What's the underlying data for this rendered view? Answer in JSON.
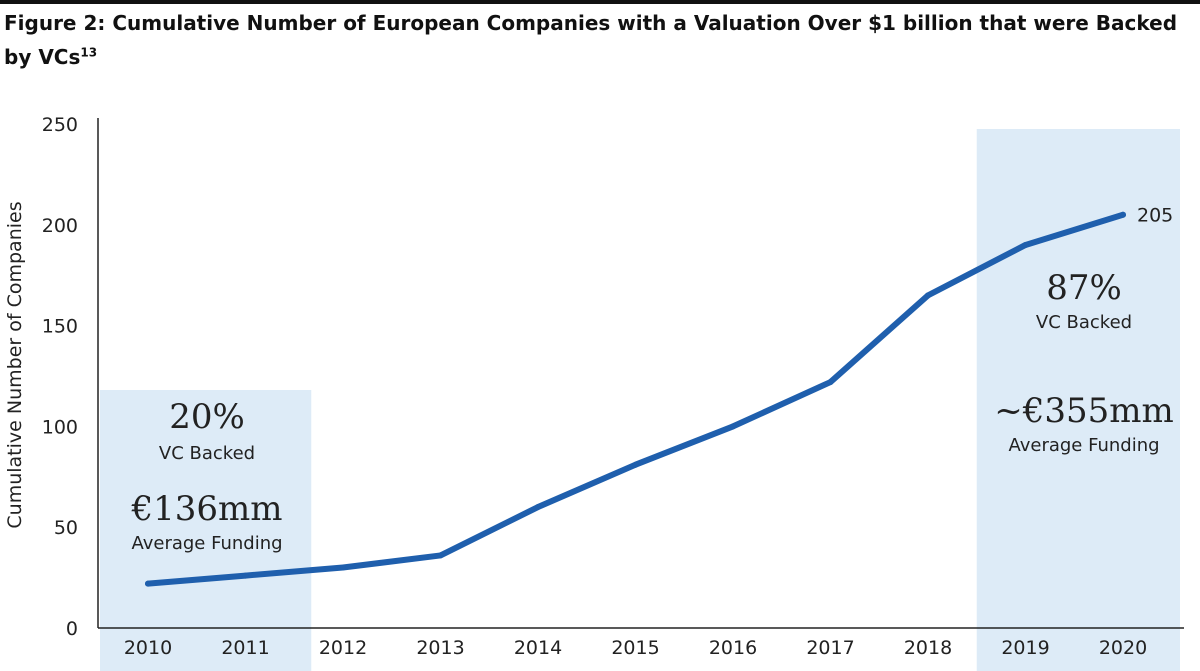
{
  "figure": {
    "title": "Figure 2: Cumulative Number of European Companies with a Valuation Over $1 billion that were Backed by VCs",
    "title_superscript": "13"
  },
  "chart_data": {
    "type": "line",
    "title": "Figure 2: Cumulative Number of European Companies with a Valuation Over $1 billion that were Backed by VCs",
    "xlabel": "",
    "ylabel": "Cumulative Number of Companies",
    "x": [
      "2010",
      "2011",
      "2012",
      "2013",
      "2014",
      "2015",
      "2016",
      "2017",
      "2018",
      "2019",
      "2020"
    ],
    "series": [
      {
        "values": [
          22,
          26,
          30,
          36,
          60,
          81,
          100,
          122,
          165,
          190,
          205
        ],
        "color": "#1f5fad"
      }
    ],
    "ylim": [
      0,
      250
    ],
    "yticks": [
      "0",
      "50",
      "100",
      "150",
      "200",
      "250"
    ],
    "grid": false,
    "end_label": "205",
    "annotations": [
      {
        "range": [
          "2010",
          "2011"
        ],
        "pct": "20%",
        "pct_label": "VC Backed",
        "amount": "€136mm",
        "amount_label": "Average Funding"
      },
      {
        "range": [
          "2019",
          "2020"
        ],
        "pct": "87%",
        "pct_label": "VC Backed",
        "amount": "~€355mm",
        "amount_label": "Average Funding"
      }
    ],
    "colors": {
      "line": "#1f5fad",
      "shade": "#ddebf7",
      "axis": "#222222"
    }
  }
}
